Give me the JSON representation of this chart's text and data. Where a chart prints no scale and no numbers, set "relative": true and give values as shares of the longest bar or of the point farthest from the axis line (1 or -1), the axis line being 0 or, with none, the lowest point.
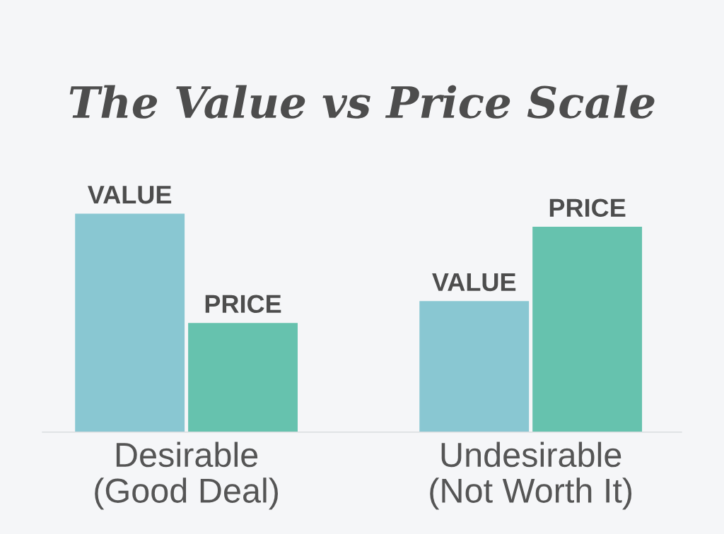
{
  "chart_data": {
    "type": "bar",
    "title": "The Value vs Price Scale",
    "categories": [
      "Desirable\n(Good Deal)",
      "Undesirable\n(Not Worth It)"
    ],
    "relative": true,
    "series": [
      {
        "name": "VALUE",
        "color": "#89c7d2",
        "values": [
          1,
          0.6
        ]
      },
      {
        "name": "PRICE",
        "color": "#66c2ae",
        "values": [
          0.5,
          0.94
        ]
      }
    ]
  }
}
